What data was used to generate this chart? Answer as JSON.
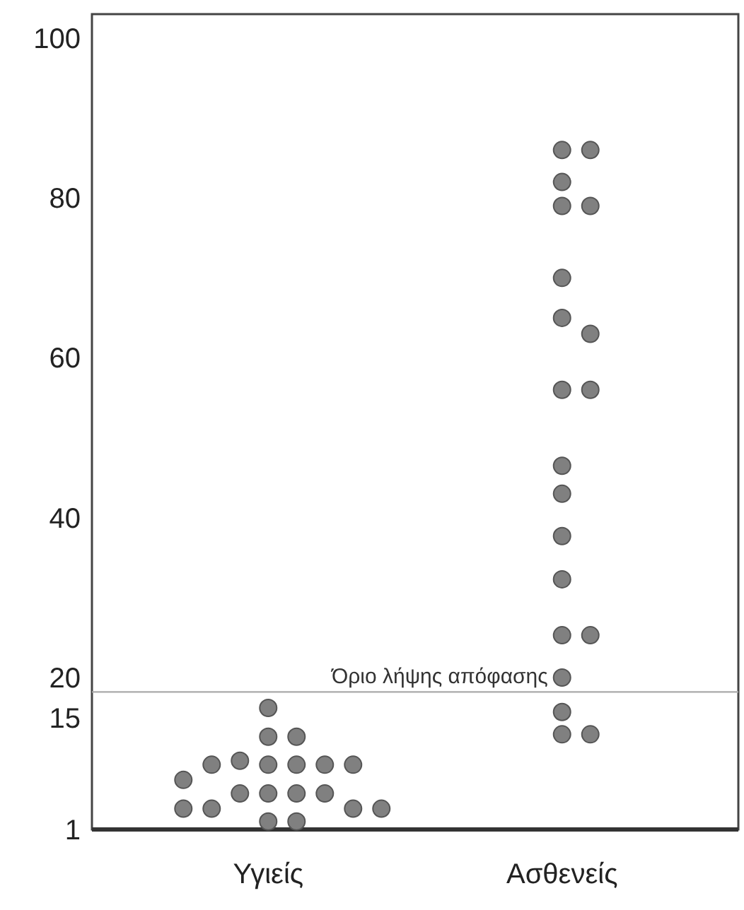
{
  "chart_data": {
    "type": "scatter",
    "categories": [
      "Υγιείς",
      "Ασθενείς"
    ],
    "ylim": [
      1,
      103
    ],
    "yticks": [
      1,
      15,
      20,
      40,
      60,
      80,
      100
    ],
    "grid": false,
    "marker": "circle",
    "series": [
      {
        "color": "#808080",
        "x": [
          "Υγιείς",
          "Υγιείς",
          "Υγιείς",
          "Υγιείς",
          "Υγιείς",
          "Υγιείς",
          "Υγιείς",
          "Υγιείς",
          "Υγιείς",
          "Υγιείς",
          "Υγιείς",
          "Υγιείς",
          "Υγιείς",
          "Υγιείς",
          "Υγιείς",
          "Υγιείς",
          "Υγιείς",
          "Υγιείς",
          "Υγιείς",
          "Υγιείς"
        ],
        "values": [
          16.2,
          12.6,
          12.6,
          9.1,
          9.1,
          9.6,
          9.1,
          9.1,
          9.1,
          7.2,
          5.5,
          5.5,
          5.5,
          5.5,
          3.6,
          3.6,
          3.6,
          3.6,
          2,
          2
        ]
      },
      {
        "color": "#808080",
        "x": [
          "Ασθενείς",
          "Ασθενείς",
          "Ασθενείς",
          "Ασθενείς",
          "Ασθενείς",
          "Ασθενείς",
          "Ασθενείς",
          "Ασθενείς",
          "Ασθενείς",
          "Ασθενείς",
          "Ασθενείς",
          "Ασθενείς",
          "Ασθενείς",
          "Ασθενείς",
          "Ασθενείς",
          "Ασθενείς",
          "Ασθενείς",
          "Ασθενείς",
          "Ασθενείς",
          "Ασθενείς"
        ],
        "values": [
          86,
          86,
          82,
          79,
          79,
          70,
          65,
          63,
          56,
          56,
          46.5,
          43,
          37.7,
          32.3,
          25.3,
          25.3,
          20,
          15.7,
          12.9,
          12.9
        ]
      }
    ],
    "ref_lines": [
      {
        "axis": "y",
        "value": 18.2,
        "label": "Όριο λήψης απόφασης",
        "color": "#aaaaaa"
      }
    ]
  }
}
